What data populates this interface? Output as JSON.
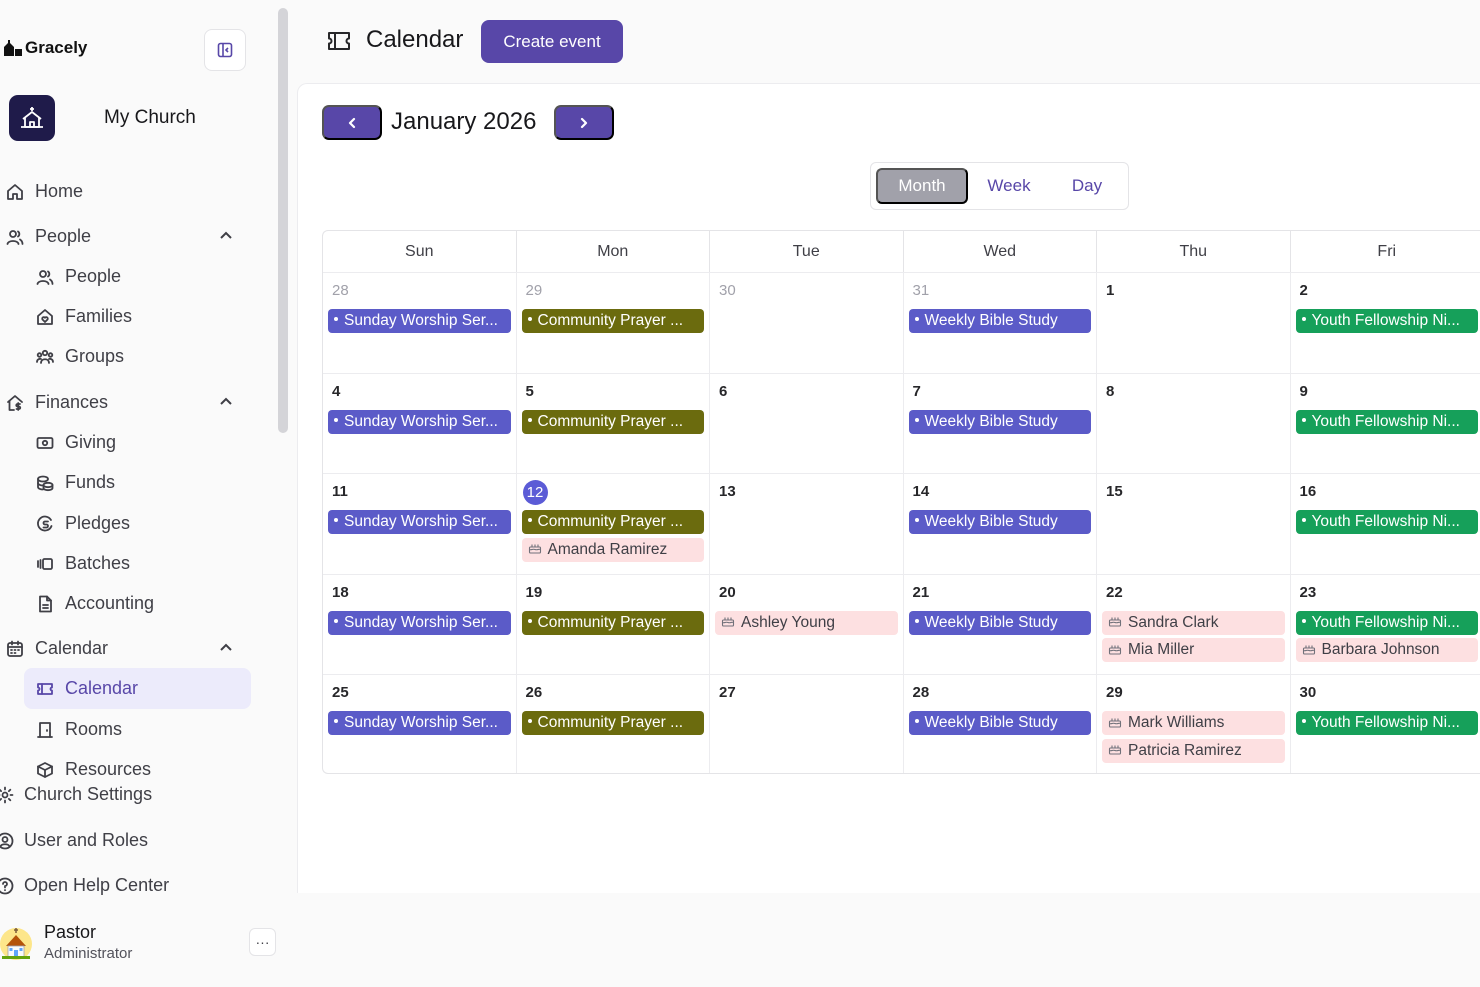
{
  "app": {
    "brand": "Gracely",
    "church_name": "My Church"
  },
  "sidebar": {
    "home": "Home",
    "people_section": "People",
    "people": "People",
    "families": "Families",
    "groups": "Groups",
    "finances_section": "Finances",
    "giving": "Giving",
    "funds": "Funds",
    "pledges": "Pledges",
    "batches": "Batches",
    "accounting": "Accounting",
    "calendar_section": "Calendar",
    "calendar": "Calendar",
    "rooms": "Rooms",
    "resources": "Resources",
    "church_settings": "Church Settings",
    "user_roles": "User and Roles",
    "help_center": "Open Help Center"
  },
  "user": {
    "name": "Pastor",
    "role": "Administrator",
    "more": "···"
  },
  "header": {
    "title": "Calendar",
    "create_label": "Create event"
  },
  "calendar": {
    "month_title": "January 2026",
    "views": [
      "Month",
      "Week",
      "Day"
    ],
    "active_view": "Month",
    "days_of_week": [
      "Sun",
      "Mon",
      "Tue",
      "Wed",
      "Thu",
      "Fri"
    ],
    "weeks": [
      [
        {
          "day": "28",
          "muted": true,
          "events": [
            {
              "type": "worship",
              "label": "Sunday Worship Ser..."
            }
          ]
        },
        {
          "day": "29",
          "muted": true,
          "events": [
            {
              "type": "prayer",
              "label": "Community Prayer ..."
            }
          ]
        },
        {
          "day": "30",
          "muted": true,
          "events": []
        },
        {
          "day": "31",
          "muted": true,
          "events": [
            {
              "type": "bible",
              "label": "Weekly Bible Study"
            }
          ]
        },
        {
          "day": "1",
          "events": []
        },
        {
          "day": "2",
          "events": [
            {
              "type": "youth",
              "label": "Youth Fellowship Ni..."
            }
          ]
        }
      ],
      [
        {
          "day": "4",
          "events": [
            {
              "type": "worship",
              "label": "Sunday Worship Ser..."
            }
          ]
        },
        {
          "day": "5",
          "events": [
            {
              "type": "prayer",
              "label": "Community Prayer ..."
            }
          ]
        },
        {
          "day": "6",
          "events": []
        },
        {
          "day": "7",
          "events": [
            {
              "type": "bible",
              "label": "Weekly Bible Study"
            }
          ]
        },
        {
          "day": "8",
          "events": []
        },
        {
          "day": "9",
          "events": [
            {
              "type": "youth",
              "label": "Youth Fellowship Ni..."
            }
          ]
        }
      ],
      [
        {
          "day": "11",
          "events": [
            {
              "type": "worship",
              "label": "Sunday Worship Ser..."
            }
          ]
        },
        {
          "day": "12",
          "today": true,
          "events": [
            {
              "type": "prayer",
              "label": "Community Prayer ..."
            },
            {
              "type": "bday",
              "label": "Amanda Ramirez"
            }
          ]
        },
        {
          "day": "13",
          "events": []
        },
        {
          "day": "14",
          "events": [
            {
              "type": "bible",
              "label": "Weekly Bible Study"
            }
          ]
        },
        {
          "day": "15",
          "events": []
        },
        {
          "day": "16",
          "events": [
            {
              "type": "youth",
              "label": "Youth Fellowship Ni..."
            }
          ]
        }
      ],
      [
        {
          "day": "18",
          "events": [
            {
              "type": "worship",
              "label": "Sunday Worship Ser..."
            }
          ]
        },
        {
          "day": "19",
          "events": [
            {
              "type": "prayer",
              "label": "Community Prayer ..."
            }
          ]
        },
        {
          "day": "20",
          "events": [
            {
              "type": "bday",
              "label": "Ashley Young"
            }
          ]
        },
        {
          "day": "21",
          "events": [
            {
              "type": "bible",
              "label": "Weekly Bible Study"
            }
          ]
        },
        {
          "day": "22",
          "events": [
            {
              "type": "bday",
              "label": "Sandra Clark"
            },
            {
              "type": "bday",
              "label": "Mia Miller"
            }
          ]
        },
        {
          "day": "23",
          "events": [
            {
              "type": "youth",
              "label": "Youth Fellowship Ni..."
            },
            {
              "type": "bday",
              "label": "Barbara Johnson"
            }
          ]
        }
      ],
      [
        {
          "day": "25",
          "events": [
            {
              "type": "worship",
              "label": "Sunday Worship Ser..."
            }
          ]
        },
        {
          "day": "26",
          "events": [
            {
              "type": "prayer",
              "label": "Community Prayer ..."
            }
          ]
        },
        {
          "day": "27",
          "events": []
        },
        {
          "day": "28",
          "events": [
            {
              "type": "bible",
              "label": "Weekly Bible Study"
            }
          ]
        },
        {
          "day": "29",
          "events": [
            {
              "type": "bday",
              "label": "Mark Williams"
            },
            {
              "type": "bday",
              "label": "Patricia Ramirez"
            }
          ]
        },
        {
          "day": "30",
          "events": [
            {
              "type": "youth",
              "label": "Youth Fellowship Ni..."
            }
          ]
        }
      ]
    ]
  },
  "colors": {
    "accent": "#5847a8",
    "worship": "#5b5bc8",
    "prayer": "#6b6b0e",
    "youth": "#16a05a",
    "birthday": "#fde0e1",
    "today": "#5b5bd6"
  }
}
